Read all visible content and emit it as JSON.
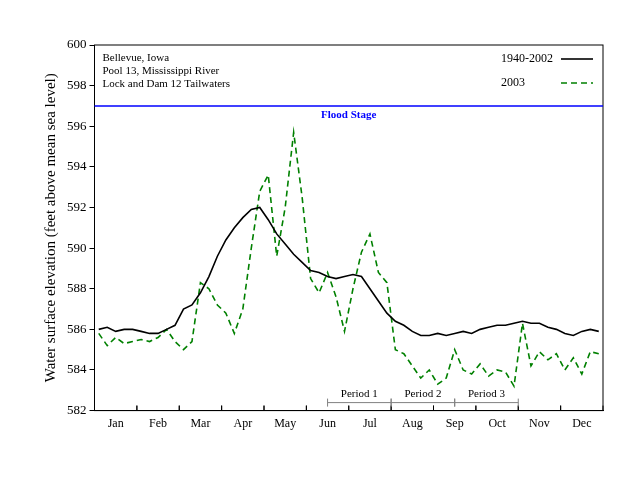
{
  "chart_data": {
    "type": "line",
    "y_label": "Water surface elevation (feet above mean sea level)",
    "annotation": [
      "Bellevue, Iowa",
      "Pool 13, Mississippi River",
      "Lock and Dam 12 Tailwaters"
    ],
    "categories": [
      null,
      null,
      "Jan",
      null,
      null,
      null,
      null,
      "Feb",
      null,
      null,
      null,
      null,
      "Mar",
      null,
      null,
      null,
      null,
      "Apr",
      null,
      null,
      null,
      null,
      "May",
      null,
      null,
      null,
      null,
      "Jun",
      null,
      null,
      null,
      null,
      "Jul",
      null,
      null,
      null,
      null,
      "Aug",
      null,
      null,
      null,
      null,
      "Sep",
      null,
      null,
      null,
      null,
      "Oct",
      null,
      null,
      null,
      null,
      "Nov",
      null,
      null,
      null,
      null,
      "Dec",
      null,
      null
    ],
    "series": [
      {
        "name": "1940-2002",
        "color": "#000000",
        "line_style": "solid",
        "values": [
          586.0,
          586.1,
          585.9,
          586.0,
          586.0,
          585.9,
          585.8,
          585.8,
          586.0,
          586.2,
          587.0,
          587.2,
          587.8,
          588.6,
          589.6,
          590.4,
          591.0,
          591.5,
          591.9,
          592.0,
          591.4,
          590.7,
          590.2,
          589.7,
          589.3,
          588.9,
          588.8,
          588.6,
          588.5,
          588.6,
          588.7,
          588.6,
          588.0,
          587.4,
          586.8,
          586.4,
          586.2,
          585.9,
          585.7,
          585.7,
          585.8,
          585.7,
          585.8,
          585.9,
          585.8,
          586.0,
          586.1,
          586.2,
          586.2,
          586.3,
          586.4,
          586.3,
          586.3,
          586.1,
          586.0,
          585.8,
          585.7,
          585.9,
          586.0,
          585.9
        ]
      },
      {
        "name": "2003",
        "color": "#008000",
        "line_style": "dashed",
        "values": [
          585.8,
          585.2,
          585.6,
          585.3,
          585.4,
          585.5,
          585.4,
          585.6,
          586.0,
          585.4,
          585.0,
          585.4,
          588.3,
          588.0,
          587.2,
          586.8,
          585.8,
          587.0,
          590.0,
          592.8,
          593.6,
          589.6,
          592.0,
          595.7,
          592.5,
          588.5,
          587.8,
          588.8,
          587.6,
          585.9,
          588.0,
          589.8,
          590.7,
          588.8,
          588.3,
          585.0,
          584.8,
          584.2,
          583.6,
          584.0,
          583.3,
          583.6,
          585.0,
          584.0,
          583.8,
          584.3,
          583.7,
          584.0,
          583.9,
          583.2,
          586.3,
          584.2,
          584.9,
          584.5,
          584.8,
          584.0,
          584.6,
          583.8,
          584.9,
          584.8
        ]
      }
    ],
    "hlines": [
      {
        "y": 597,
        "label": "Flood Stage",
        "color": "#0000ff"
      }
    ],
    "periods": [
      {
        "label": "Period 1",
        "start": 27,
        "end": 34.5
      },
      {
        "label": "Period 2",
        "start": 34.5,
        "end": 42
      },
      {
        "label": "Period 3",
        "start": 42,
        "end": 49.5
      }
    ],
    "ylim": [
      582,
      600
    ],
    "yticks": [
      582,
      584,
      586,
      588,
      590,
      592,
      594,
      596,
      598,
      600
    ],
    "grid": false,
    "legend": "top-right"
  }
}
